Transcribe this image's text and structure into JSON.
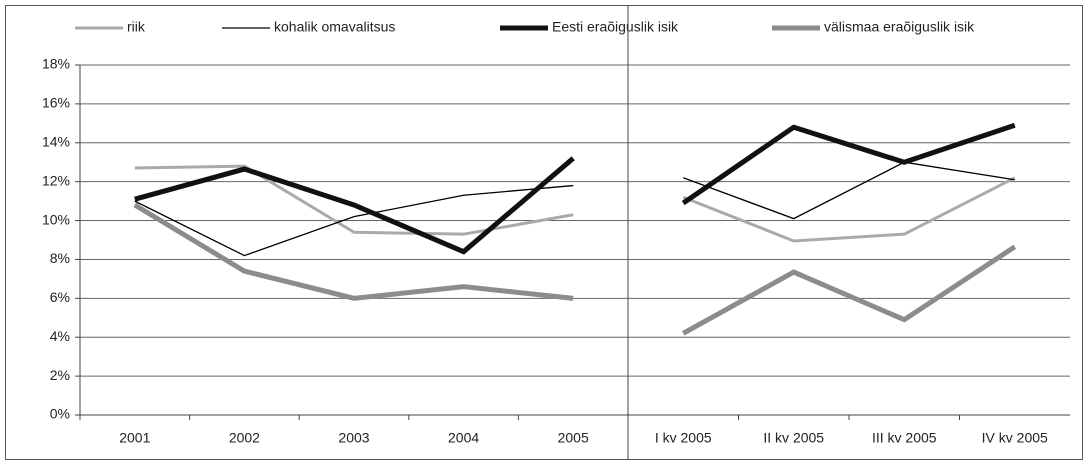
{
  "chart_data": [
    {
      "type": "line",
      "categories": [
        "2001",
        "2002",
        "2003",
        "2004",
        "2005"
      ],
      "series": [
        {
          "name": "riik",
          "color": "#aaaaaa",
          "values": [
            12.7,
            12.8,
            9.4,
            9.3,
            10.3
          ]
        },
        {
          "name": "kohalik omavalitsus",
          "color": "#000000",
          "values": [
            11.0,
            8.2,
            10.2,
            11.3,
            11.8
          ]
        },
        {
          "name": "Eesti eraõiguslik isik",
          "color": "#111111",
          "values": [
            11.1,
            12.65,
            10.8,
            8.4,
            13.2
          ]
        },
        {
          "name": "välismaa eraõiguslik isik",
          "color": "#8c8c8c",
          "values": [
            10.8,
            7.4,
            6.0,
            6.6,
            6.0
          ]
        }
      ],
      "ylim": [
        0,
        18
      ],
      "yticks": [
        {
          "value": 0,
          "label": "0%"
        },
        {
          "value": 2,
          "label": "2%"
        },
        {
          "value": 4,
          "label": "4%"
        },
        {
          "value": 6,
          "label": "6%"
        },
        {
          "value": 8,
          "label": "8%"
        },
        {
          "value": 10,
          "label": "10%"
        },
        {
          "value": 12,
          "label": "12%"
        },
        {
          "value": 14,
          "label": "14%"
        },
        {
          "value": 16,
          "label": "16%"
        },
        {
          "value": 18,
          "label": "18%"
        }
      ],
      "grid": true
    },
    {
      "type": "line",
      "categories": [
        "I kv 2005",
        "II kv 2005",
        "III kv 2005",
        "IV kv 2005"
      ],
      "series": [
        {
          "color": "#aaaaaa",
          "values": [
            11.2,
            8.95,
            9.3,
            12.2
          ]
        },
        {
          "color": "#000000",
          "values": [
            12.2,
            10.1,
            13.0,
            12.1
          ]
        },
        {
          "color": "#111111",
          "values": [
            10.9,
            14.8,
            13.0,
            14.9
          ]
        },
        {
          "color": "#8c8c8c",
          "values": [
            4.2,
            7.35,
            4.9,
            8.65
          ]
        }
      ],
      "ylim": [
        0,
        18
      ],
      "yticks": [
        0,
        2,
        4,
        6,
        8,
        10,
        12,
        14,
        16,
        18
      ],
      "grid": true
    }
  ]
}
